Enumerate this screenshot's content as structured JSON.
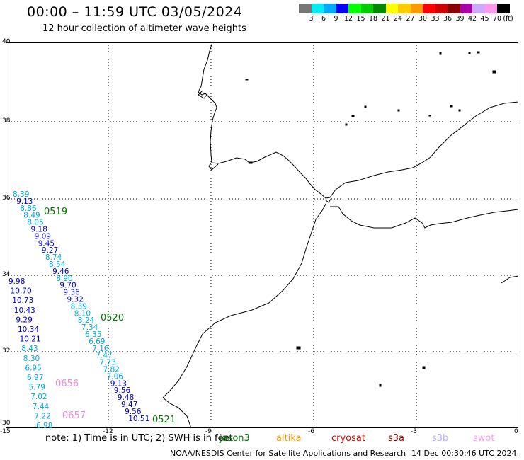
{
  "title": "00:00 – 11:59 UTC 03/05/2024",
  "subtitle": "12 hour collection of altimeter wave heights",
  "colorbar": {
    "colors": [
      "#777777",
      "#00eeee",
      "#00aaff",
      "#0000ff",
      "#00ff00",
      "#00cc00",
      "#008800",
      "#ffff00",
      "#ffcc00",
      "#ff9900",
      "#ff0000",
      "#cc0000",
      "#880000",
      "#aa00aa",
      "#ccaaff",
      "#ff99ee",
      "#000000"
    ],
    "labels": [
      "3",
      "6",
      "9",
      "12",
      "15",
      "18",
      "21",
      "24",
      "27",
      "30",
      "33",
      "36",
      "39",
      "42",
      "45",
      "70",
      "(ft)"
    ]
  },
  "axes": {
    "x_ticks": [
      "-15",
      "-12",
      "-9",
      "-6",
      "-3",
      "0"
    ],
    "y_ticks": [
      "40",
      "38",
      "36",
      "34",
      "32",
      "30"
    ]
  },
  "pass_labels": [
    {
      "text": "0519",
      "color": "#007700"
    },
    {
      "text": "0520",
      "color": "#007700"
    },
    {
      "text": "0656",
      "color": "#ee88dd"
    },
    {
      "text": "0657",
      "color": "#ee88dd"
    },
    {
      "text": "0521",
      "color": "#007700"
    }
  ],
  "track_values": [
    {
      "v": "8.39",
      "c": "cyan"
    },
    {
      "v": "9.13",
      "c": "blue"
    },
    {
      "v": "8.86",
      "c": "cyan"
    },
    {
      "v": "8.49",
      "c": "cyan"
    },
    {
      "v": "8.05",
      "c": "cyan"
    },
    {
      "v": "9.18",
      "c": "blue"
    },
    {
      "v": "9.09",
      "c": "blue"
    },
    {
      "v": "9.45",
      "c": "blue"
    },
    {
      "v": "9.27",
      "c": "blue"
    },
    {
      "v": "8.74",
      "c": "cyan"
    },
    {
      "v": "8.54",
      "c": "cyan"
    },
    {
      "v": "9.46",
      "c": "blue"
    },
    {
      "v": "8.90",
      "c": "cyan"
    },
    {
      "v": "9.70",
      "c": "blue"
    },
    {
      "v": "9.36",
      "c": "blue"
    },
    {
      "v": "9.32",
      "c": "blue"
    },
    {
      "v": "8.39",
      "c": "cyan"
    },
    {
      "v": "8.10",
      "c": "cyan"
    },
    {
      "v": "8.24",
      "c": "cyan"
    },
    {
      "v": "7.34",
      "c": "cyan"
    },
    {
      "v": "6.35",
      "c": "cyan"
    },
    {
      "v": "6.69",
      "c": "cyan"
    },
    {
      "v": "7.16",
      "c": "cyan"
    },
    {
      "v": "7.47",
      "c": "cyan"
    },
    {
      "v": "7.73",
      "c": "cyan"
    },
    {
      "v": "7.82",
      "c": "cyan"
    },
    {
      "v": "7.06",
      "c": "cyan"
    },
    {
      "v": "9.13",
      "c": "blue"
    },
    {
      "v": "9.56",
      "c": "blue"
    },
    {
      "v": "9.48",
      "c": "blue"
    },
    {
      "v": "9.47",
      "c": "blue"
    },
    {
      "v": "9.56",
      "c": "blue"
    },
    {
      "v": "10.51",
      "c": "blue"
    },
    {
      "v": "9.98",
      "c": "blue"
    },
    {
      "v": "10.70",
      "c": "blue"
    },
    {
      "v": "10.73",
      "c": "blue"
    },
    {
      "v": "10.43",
      "c": "blue"
    },
    {
      "v": "9.29",
      "c": "blue"
    },
    {
      "v": "10.34",
      "c": "blue"
    },
    {
      "v": "10.21",
      "c": "blue"
    },
    {
      "v": "8.43",
      "c": "cyan"
    },
    {
      "v": "8.30",
      "c": "cyan"
    },
    {
      "v": "6.95",
      "c": "cyan"
    },
    {
      "v": "6.97",
      "c": "cyan"
    },
    {
      "v": "5.79",
      "c": "cyan"
    },
    {
      "v": "7.02",
      "c": "cyan"
    },
    {
      "v": "7.44",
      "c": "cyan"
    },
    {
      "v": "7.22",
      "c": "cyan"
    },
    {
      "v": "6.98",
      "c": "cyan"
    }
  ],
  "value_colors": {
    "cyan": "#00aadd",
    "blue": "#0000cc"
  },
  "note": "note: 1) Time is in UTC; 2) SWH is in feet",
  "satellites": [
    {
      "name": "jason3",
      "color": "#007700"
    },
    {
      "name": "altika",
      "color": "#ff9900"
    },
    {
      "name": "cryosat",
      "color": "#dd0000"
    },
    {
      "name": "s3a",
      "color": "#990000"
    },
    {
      "name": "s3b",
      "color": "#bbaaff"
    },
    {
      "name": "swot",
      "color": "#ff99ee"
    }
  ],
  "footer_left": "NOAA/NESDIS Center for Satellite Applications and Research",
  "footer_right": "14 Dec 00:30:46 UTC 2024"
}
